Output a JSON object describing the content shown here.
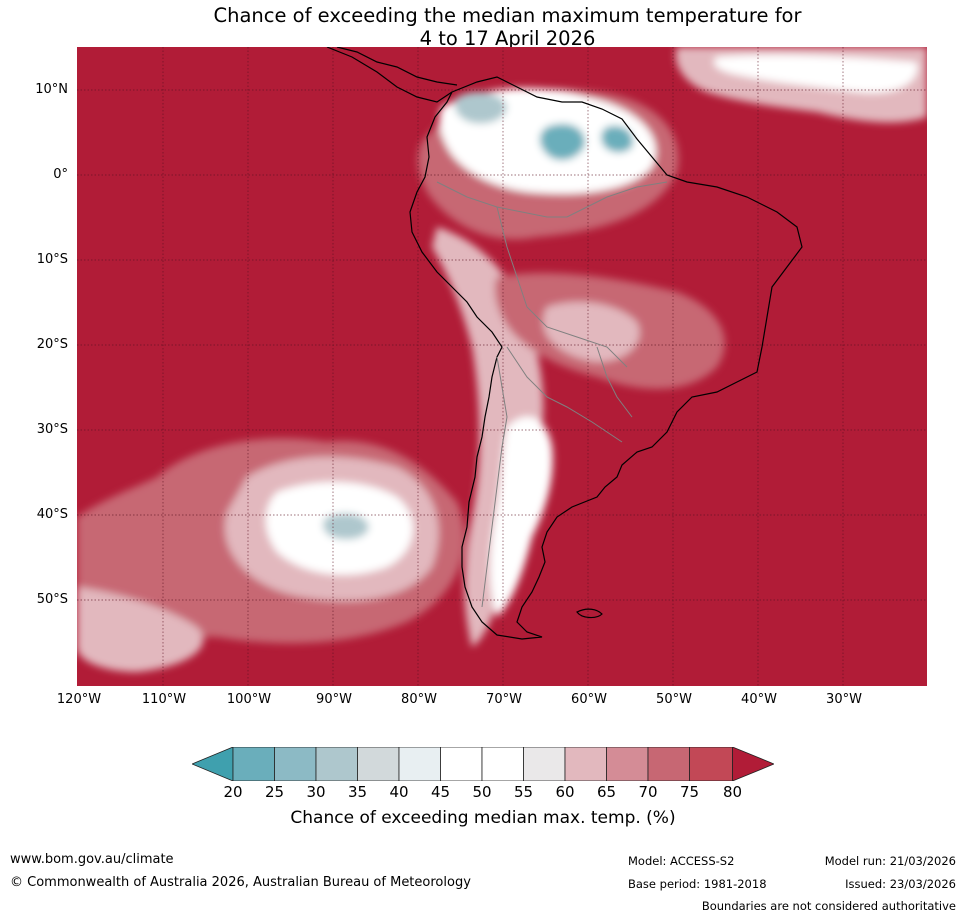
{
  "title": {
    "line1": "Chance of exceeding the median maximum temperature for",
    "line2": "4 to 17 April 2026"
  },
  "map": {
    "region": "South America",
    "latitude_labels": [
      "10°N",
      "0°",
      "10°S",
      "20°S",
      "30°S",
      "40°S",
      "50°S"
    ],
    "longitude_labels": [
      "120°W",
      "110°W",
      "100°W",
      "90°W",
      "80°W",
      "70°W",
      "60°W",
      "50°W",
      "40°W",
      "30°W"
    ],
    "background_color": "#b11c37"
  },
  "colorbar": {
    "ticks": [
      "20",
      "25",
      "30",
      "35",
      "40",
      "45",
      "50",
      "55",
      "60",
      "65",
      "70",
      "75",
      "80"
    ],
    "colors": [
      "#3fa0ae",
      "#6aaebb",
      "#8cbac5",
      "#aec7cd",
      "#d2d9db",
      "#e8eff2",
      "#ffffff",
      "#ffffff",
      "#eae8e9",
      "#e2b8be",
      "#d48c96",
      "#c76773",
      "#c24856",
      "#b11c37"
    ],
    "label": "Chance of exceeding median max. temp. (%)"
  },
  "footer": {
    "website": "www.bom.gov.au/climate",
    "copyright": "© Commonwealth of Australia 2026, Australian Bureau of Meteorology",
    "model": "Model: ACCESS-S2",
    "base_period": "Base period: 1981-2018",
    "model_run": "Model run: 21/03/2026",
    "issued": "Issued: 23/03/2026",
    "boundaries_note": "Boundaries are not considered authoritative"
  }
}
